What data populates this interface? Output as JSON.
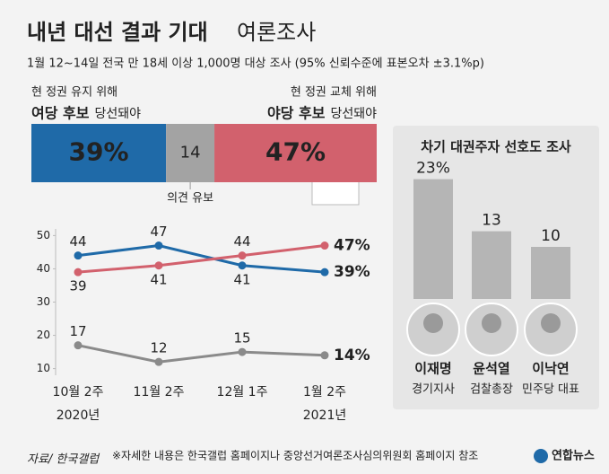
{
  "header": {
    "title": "내년 대선 결과 기대",
    "title_suffix": "여론조사",
    "subtitle": "1월 12~14일 전국 만 18세 이상 1,000명 대상 조사 (95% 신뢰수준에 표본오차 ±3.1%p)"
  },
  "footer": {
    "source": "자료/ 한국갤럽",
    "note": "※자세한 내용은 한국갤럽 홈페이지나 중앙선거여론조사심의위원회 홈페이지 참조",
    "logo": "연합뉴스"
  },
  "chart_data": [
    {
      "type": "hbar",
      "xlim": [
        0,
        100
      ],
      "series": [
        {
          "name": "여당 후보",
          "pre": "현 정권 유지 위해",
          "suffix": "당선돼야",
          "color": "#1f6aa8",
          "values": [
            39
          ],
          "value_labels": [
            "39%"
          ]
        },
        {
          "name": "의견 유보",
          "color": "#a3a3a3",
          "values": [
            14
          ]
        },
        {
          "name": "야당 후보",
          "pre": "현 정권 교체 위해",
          "suffix": "당선돼야",
          "color": "#d2616d",
          "values": [
            47
          ],
          "value_labels": [
            "47%"
          ]
        }
      ]
    },
    {
      "type": "line",
      "categories": [
        "10월 2주",
        "11월 2주",
        "12월 1주",
        "1월 2주"
      ],
      "years": [
        "2020년",
        null,
        null,
        "2021년"
      ],
      "ylim": [
        8,
        52
      ],
      "yticks": [
        10,
        20,
        30,
        40,
        50
      ],
      "grid": false,
      "series": [
        {
          "color": "#1f6aa8",
          "values": [
            44,
            47,
            41,
            39
          ],
          "value_labels": [
            "44",
            "47",
            "41",
            "39%"
          ]
        },
        {
          "color": "#d2616d",
          "values": [
            39,
            41,
            44,
            47
          ],
          "value_labels": [
            "39",
            "41",
            "44",
            "47%"
          ]
        },
        {
          "color": "#8a8a8a",
          "values": [
            17,
            12,
            15,
            14
          ],
          "value_labels": [
            "17",
            "12",
            "15",
            "14%"
          ]
        }
      ]
    },
    {
      "type": "bar",
      "title": "차기 대권주자 선호도 조사",
      "categories": [
        "이재명",
        "윤석열",
        "이낙연"
      ],
      "roles": [
        "경기지사",
        "검찰총장",
        "민주당 대표"
      ],
      "color": "#b5b5b5",
      "values": [
        23,
        13,
        10
      ],
      "value_labels": [
        "23%",
        "13",
        "10"
      ]
    }
  ]
}
